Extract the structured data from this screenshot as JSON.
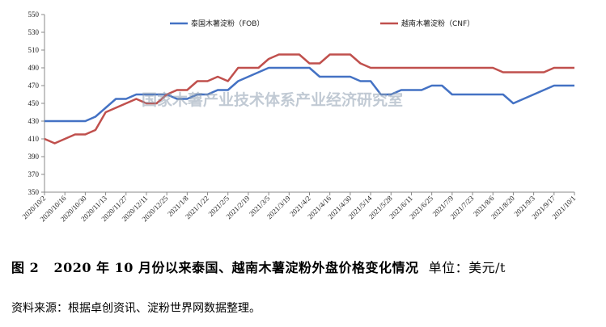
{
  "chart_data": {
    "type": "line",
    "title": "",
    "xlabel": "",
    "ylabel": "",
    "ylim": [
      350,
      550
    ],
    "yticks": [
      350,
      370,
      390,
      410,
      430,
      450,
      470,
      490,
      510,
      530,
      550
    ],
    "grid": false,
    "legend_position": "top",
    "x_tick_labels": [
      "2020/10/2",
      "2020/10/16",
      "2020/10/30",
      "2020/11/13",
      "2020/11/27",
      "2020/12/11",
      "2020/12/25",
      "2021/1/8",
      "2021/1/22",
      "2021/2/5",
      "2021/2/19",
      "2021/3/5",
      "2021/3/19",
      "2021/4/2",
      "2021/4/16",
      "2021/4/30",
      "2021/5/14",
      "2021/5/28",
      "2021/6/11",
      "2021/6/25",
      "2021/7/9",
      "2021/7/23",
      "2021/8/6",
      "2021/8/20",
      "2021/9/3",
      "2021/9/17",
      "2021/10/1"
    ],
    "series": [
      {
        "name": "泰国木薯淀粉（FOB）",
        "color": "#4472c4",
        "points": [
          [
            "2020/10/2",
            430
          ],
          [
            "2020/10/16",
            430
          ],
          [
            "2020/10/30",
            430
          ],
          [
            "2020/11/6",
            435
          ],
          [
            "2020/11/13",
            445
          ],
          [
            "2020/11/20",
            455
          ],
          [
            "2020/11/27",
            455
          ],
          [
            "2020/12/4",
            460
          ],
          [
            "2020/12/11",
            460
          ],
          [
            "2020/12/18",
            460
          ],
          [
            "2020/12/25",
            460
          ],
          [
            "2021/1/1",
            455
          ],
          [
            "2021/1/8",
            455
          ],
          [
            "2021/1/15",
            460
          ],
          [
            "2021/1/22",
            460
          ],
          [
            "2021/1/29",
            465
          ],
          [
            "2021/2/5",
            465
          ],
          [
            "2021/2/12",
            475
          ],
          [
            "2021/2/19",
            480
          ],
          [
            "2021/2/26",
            485
          ],
          [
            "2021/3/5",
            490
          ],
          [
            "2021/3/19",
            490
          ],
          [
            "2021/4/2",
            490
          ],
          [
            "2021/4/9",
            480
          ],
          [
            "2021/4/30",
            480
          ],
          [
            "2021/5/7",
            475
          ],
          [
            "2021/5/14",
            475
          ],
          [
            "2021/5/21",
            460
          ],
          [
            "2021/5/28",
            460
          ],
          [
            "2021/6/4",
            465
          ],
          [
            "2021/6/18",
            465
          ],
          [
            "2021/6/25",
            470
          ],
          [
            "2021/7/2",
            470
          ],
          [
            "2021/7/9",
            460
          ],
          [
            "2021/8/13",
            460
          ],
          [
            "2021/8/20",
            450
          ],
          [
            "2021/9/17",
            470
          ],
          [
            "2021/10/1",
            470
          ]
        ]
      },
      {
        "name": "越南木薯淀粉（CNF）",
        "color": "#c0504d",
        "points": [
          [
            "2020/10/2",
            410
          ],
          [
            "2020/10/9",
            405
          ],
          [
            "2020/10/16",
            410
          ],
          [
            "2020/10/23",
            415
          ],
          [
            "2020/10/30",
            415
          ],
          [
            "2020/11/6",
            420
          ],
          [
            "2020/11/13",
            440
          ],
          [
            "2020/11/20",
            445
          ],
          [
            "2020/11/27",
            450
          ],
          [
            "2020/12/4",
            455
          ],
          [
            "2020/12/11",
            450
          ],
          [
            "2020/12/18",
            450
          ],
          [
            "2020/12/25",
            460
          ],
          [
            "2021/1/1",
            465
          ],
          [
            "2021/1/8",
            465
          ],
          [
            "2021/1/15",
            475
          ],
          [
            "2021/1/22",
            475
          ],
          [
            "2021/1/29",
            480
          ],
          [
            "2021/2/5",
            475
          ],
          [
            "2021/2/12",
            490
          ],
          [
            "2021/2/26",
            490
          ],
          [
            "2021/3/5",
            500
          ],
          [
            "2021/3/12",
            505
          ],
          [
            "2021/3/26",
            505
          ],
          [
            "2021/4/2",
            495
          ],
          [
            "2021/4/9",
            495
          ],
          [
            "2021/4/16",
            505
          ],
          [
            "2021/4/30",
            505
          ],
          [
            "2021/5/7",
            495
          ],
          [
            "2021/5/14",
            490
          ],
          [
            "2021/7/30",
            490
          ],
          [
            "2021/8/6",
            490
          ],
          [
            "2021/8/13",
            485
          ],
          [
            "2021/9/10",
            485
          ],
          [
            "2021/9/17",
            490
          ],
          [
            "2021/10/1",
            490
          ]
        ]
      }
    ]
  },
  "watermark": "国家木薯产业技术体系产业经济研究室",
  "caption": {
    "figure_label": "图 2",
    "title": "2020 年 10 月份以来泰国、越南木薯淀粉外盘价格变化情况",
    "unit": "单位：美元/t"
  },
  "source": "资料来源：根据卓创资讯、淀粉世界网数据整理。"
}
